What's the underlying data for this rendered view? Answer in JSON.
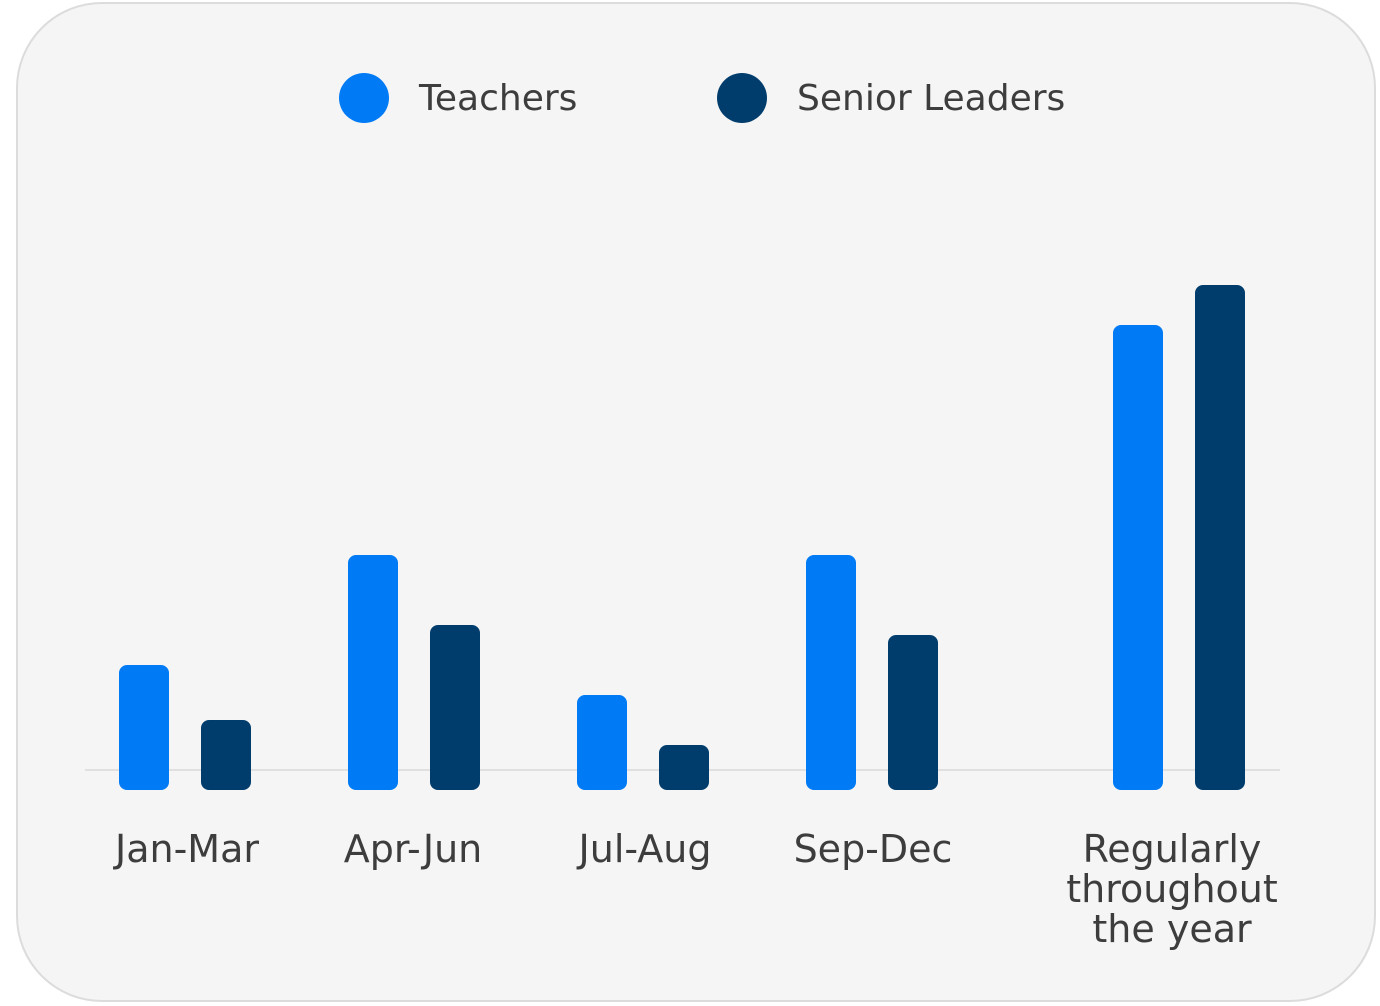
{
  "chart_data": {
    "type": "bar",
    "categories": [
      "Jan-Mar",
      "Apr-Jun",
      "Jul-Aug",
      "Sep-Dec",
      "Regularly throughout the year"
    ],
    "series": [
      {
        "name": "Teachers",
        "color": "#007bf5",
        "values": [
          25,
          47,
          19,
          47,
          93
        ]
      },
      {
        "name": "Senior Leaders",
        "color": "#003d6d",
        "values": [
          14,
          33,
          9,
          31,
          101
        ]
      }
    ],
    "ylim": [
      0,
      110
    ],
    "grid": false,
    "legend": "top-center",
    "title": "",
    "xlabel": "",
    "ylabel": ""
  }
}
